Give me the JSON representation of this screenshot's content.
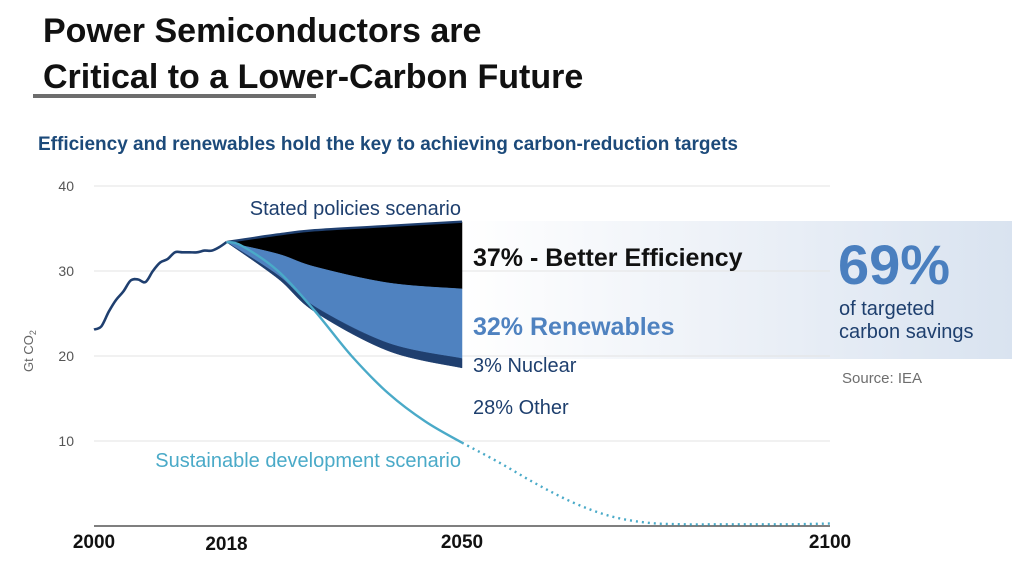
{
  "slide": {
    "title_line1": "Power Semiconductors are",
    "title_line2": "Critical to a Lower-Carbon Future",
    "subtitle": "Efficiency and renewables hold the key to achieving carbon-reduction targets",
    "big_stat": "69%",
    "big_stat_caption_line1": "of targeted",
    "big_stat_caption_line2": "carbon savings",
    "source": "Source: IEA"
  },
  "colors": {
    "historical": "#1f3f6f",
    "efficiency_wedge": "#000000",
    "renewables_wedge": "#4f82c0",
    "nuclear_wedge": "#1f3f6f",
    "sustainable": "#4aaac8",
    "title_text": "#111111",
    "subtitle_text": "#1c4a7a",
    "big_stat": "#4a7fbf"
  },
  "chart_data": {
    "type": "area",
    "ylabel": "Gt CO2",
    "ylim": [
      0,
      40
    ],
    "yticks": [
      10,
      20,
      30,
      40
    ],
    "xticks": [
      "2000",
      "2018",
      "2050",
      "2100"
    ],
    "grid": true,
    "historical": {
      "x": [
        2000,
        2001,
        2002,
        2003,
        2004,
        2005,
        2006,
        2007,
        2008,
        2009,
        2010,
        2011,
        2012,
        2013,
        2014,
        2015,
        2016,
        2017,
        2018
      ],
      "y": [
        23.1,
        23.5,
        25.2,
        26.6,
        27.6,
        28.9,
        29.0,
        28.7,
        30.0,
        31.0,
        31.4,
        32.2,
        32.2,
        32.2,
        32.2,
        32.4,
        32.4,
        32.8,
        33.4
      ]
    },
    "stated_policies": {
      "name": "Stated policies scenario",
      "x": [
        2018,
        2025,
        2030,
        2040,
        2050
      ],
      "y": [
        33.4,
        34.3,
        34.8,
        35.3,
        35.8
      ]
    },
    "sustainable_development": {
      "name": "Sustainable development scenario",
      "x": [
        2018,
        2020,
        2025,
        2030,
        2035,
        2040,
        2045,
        2050
      ],
      "y": [
        33.4,
        33.0,
        30.0,
        25.3,
        20.0,
        15.6,
        12.3,
        9.8
      ],
      "projection_dotted": {
        "x": [
          2050,
          2055,
          2060,
          2065,
          2070,
          2075,
          2080,
          2085,
          2090,
          2095,
          2100
        ],
        "y": [
          9.8,
          7.5,
          5.0,
          2.8,
          1.2,
          0.4,
          0.2,
          0.2,
          0.2,
          0.2,
          0.3
        ]
      }
    },
    "wedges": [
      {
        "name": "Better Efficiency",
        "label": "37% - Better Efficiency",
        "percent": 37,
        "x": [
          2018,
          2025,
          2030,
          2040,
          2050
        ],
        "upper": [
          33.4,
          34.3,
          34.8,
          35.3,
          35.8
        ],
        "lower": [
          33.4,
          32.0,
          30.5,
          28.6,
          27.9
        ]
      },
      {
        "name": "Renewables",
        "label": "32% Renewables",
        "percent": 32,
        "x": [
          2018,
          2025,
          2030,
          2040,
          2050
        ],
        "upper": [
          33.4,
          32.0,
          30.5,
          28.6,
          27.9
        ],
        "lower": [
          33.4,
          29.5,
          25.8,
          21.5,
          19.7
        ]
      },
      {
        "name": "Nuclear",
        "label": "3% Nuclear",
        "percent": 3,
        "x": [
          2018,
          2025,
          2030,
          2040,
          2050
        ],
        "upper": [
          33.4,
          29.5,
          25.8,
          21.5,
          19.7
        ],
        "lower": [
          33.4,
          29.1,
          25.2,
          20.6,
          18.6
        ]
      },
      {
        "name": "Other",
        "label": "28% Other",
        "percent": 28
      }
    ]
  }
}
